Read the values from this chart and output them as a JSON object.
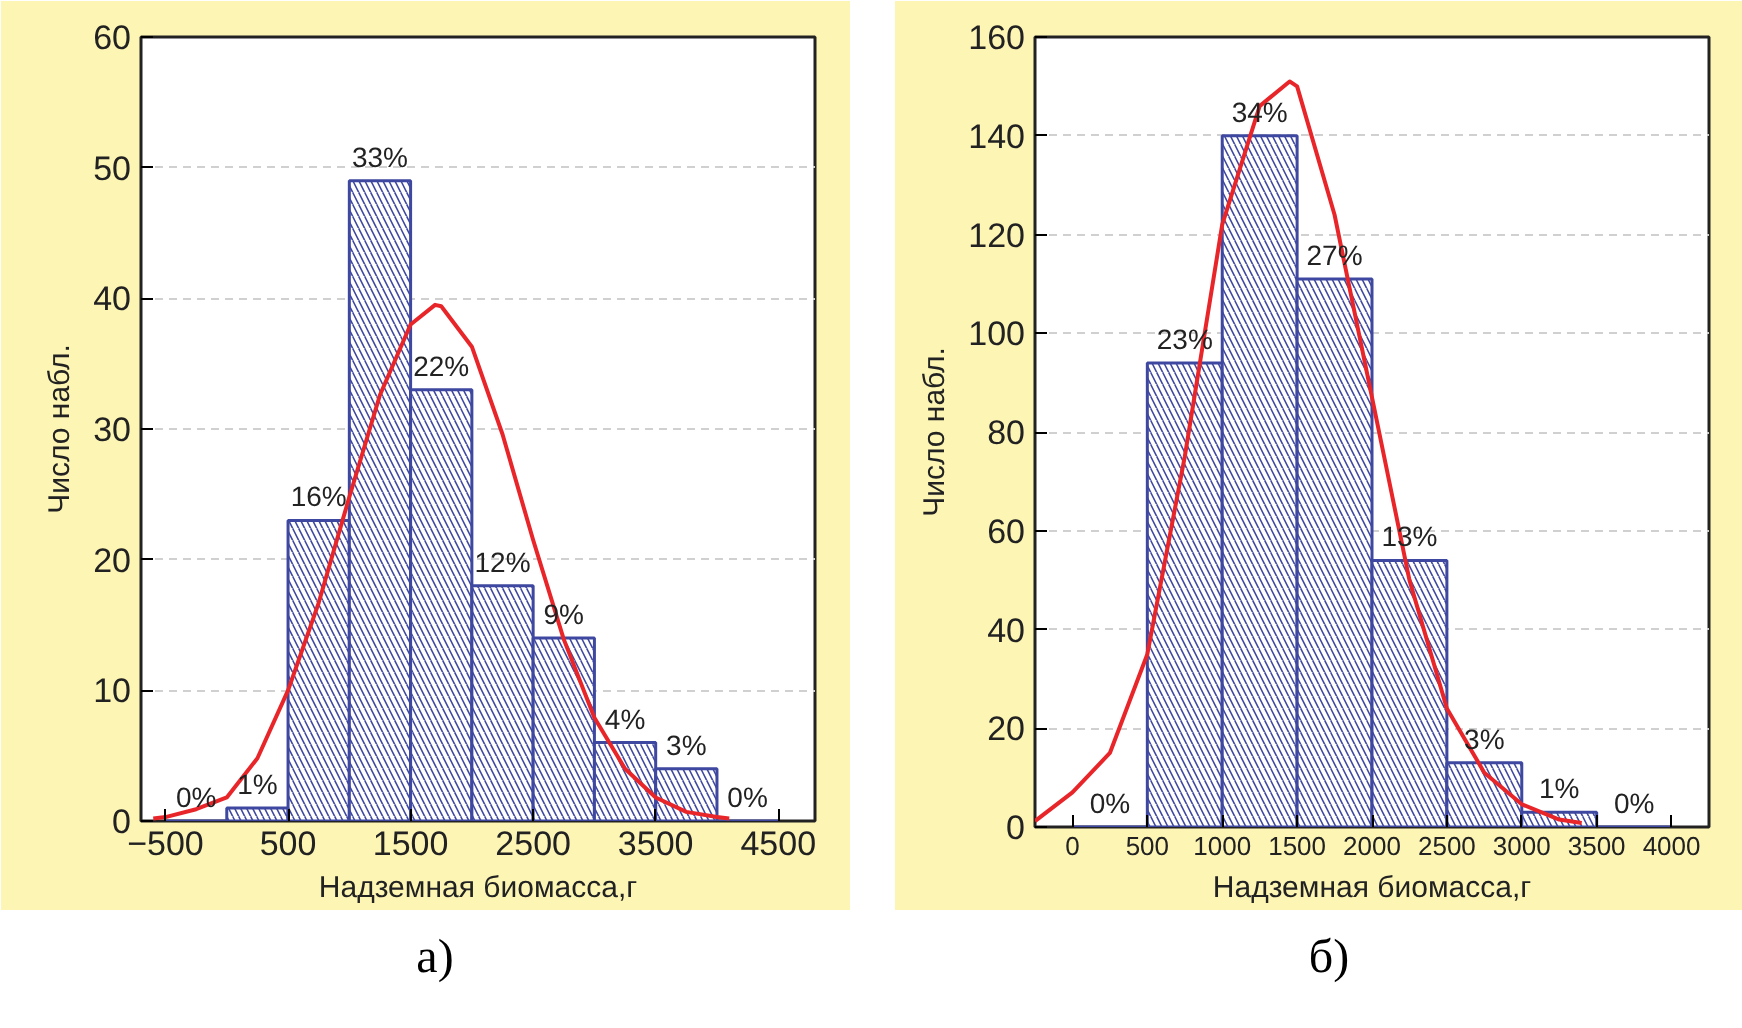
{
  "chart_data": [
    {
      "type": "histogram",
      "xlabel": "Надземная биомасса,г",
      "ylabel": "Число набл.",
      "bins": [
        -500,
        0,
        500,
        1000,
        1500,
        2000,
        2500,
        3000,
        3500,
        4000,
        4500
      ],
      "values": [
        0,
        1,
        23,
        49,
        33,
        18,
        14,
        6,
        4,
        0
      ],
      "color": "#3f48a0",
      "xlim": [
        -700,
        4800
      ],
      "ylim": [
        0,
        60
      ],
      "xticks": [
        -500,
        500,
        1500,
        2500,
        3500,
        4500
      ],
      "yticks": [
        0,
        10,
        20,
        30,
        40,
        50,
        60
      ],
      "grid": "y",
      "annotations": [
        {
          "text": "0%",
          "x": -250,
          "y": 0
        },
        {
          "text": "1%",
          "x": 250,
          "y": 1
        },
        {
          "text": "16%",
          "x": 750,
          "y": 23
        },
        {
          "text": "33%",
          "x": 1250,
          "y": 49
        },
        {
          "text": "22%",
          "x": 1750,
          "y": 33
        },
        {
          "text": "12%",
          "x": 2250,
          "y": 18
        },
        {
          "text": "9%",
          "x": 2750,
          "y": 14
        },
        {
          "text": "4%",
          "x": 3250,
          "y": 6
        },
        {
          "text": "3%",
          "x": 3750,
          "y": 4
        },
        {
          "text": "0%",
          "x": 4250,
          "y": 0
        },
        "а)"
      ],
      "series": [
        {
          "type": "line",
          "color": "#e8262a",
          "x": [
            -600,
            -500,
            -250,
            0,
            250,
            500,
            750,
            1000,
            1250,
            1500,
            1700,
            1750,
            2000,
            2250,
            2500,
            2750,
            3000,
            3250,
            3500,
            3750,
            4000,
            4100
          ],
          "values": [
            0.2,
            0.3,
            0.9,
            1.8,
            4.8,
            10.0,
            16.7,
            24.8,
            32.6,
            38.0,
            39.5,
            39.4,
            36.3,
            29.6,
            21.5,
            13.9,
            7.9,
            4.0,
            1.8,
            0.7,
            0.3,
            0.2
          ]
        }
      ]
    },
    {
      "type": "histogram",
      "xlabel": "Надземная биомасса,г",
      "ylabel": "Число набл.",
      "bins": [
        0,
        500,
        1000,
        1500,
        2000,
        2500,
        3000,
        3500,
        4000
      ],
      "values": [
        0,
        94,
        140,
        111,
        54,
        13,
        3,
        0
      ],
      "color": "#3f48a0",
      "xlim": [
        -250,
        4250
      ],
      "ylim": [
        0,
        160
      ],
      "xticks": [
        0,
        500,
        1000,
        1500,
        2000,
        2500,
        3000,
        3500,
        4000
      ],
      "yticks": [
        0,
        20,
        40,
        60,
        80,
        100,
        120,
        140,
        160
      ],
      "grid": "y",
      "annotations": [
        {
          "text": "0%",
          "x": 250,
          "y": 0
        },
        {
          "text": "23%",
          "x": 750,
          "y": 94
        },
        {
          "text": "34%",
          "x": 1250,
          "y": 140
        },
        {
          "text": "27%",
          "x": 1750,
          "y": 111
        },
        {
          "text": "13%",
          "x": 2250,
          "y": 54
        },
        {
          "text": "3%",
          "x": 2750,
          "y": 13
        },
        {
          "text": "1%",
          "x": 3250,
          "y": 3
        },
        {
          "text": "0%",
          "x": 3750,
          "y": 0
        },
        "б)"
      ],
      "series": [
        {
          "type": "line",
          "color": "#e8262a",
          "x": [
            -250,
            0,
            250,
            500,
            750,
            1000,
            1250,
            1450,
            1500,
            1750,
            2000,
            2250,
            2500,
            2750,
            3000,
            3250,
            3400
          ],
          "values": [
            1.2,
            7,
            15,
            35,
            75,
            122,
            146,
            151,
            150,
            124,
            87,
            50,
            24,
            11,
            4.6,
            1.5,
            0.8
          ]
        }
      ]
    }
  ]
}
